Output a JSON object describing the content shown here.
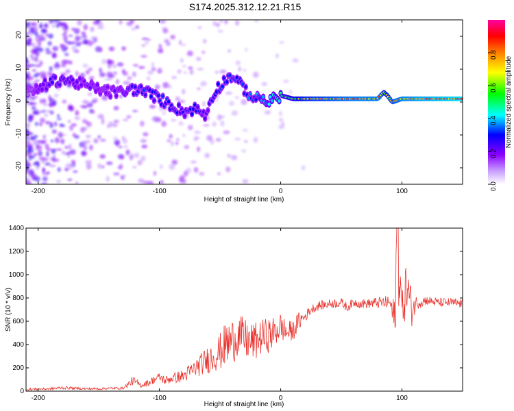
{
  "title": "S174.2025.312.12.21.R15",
  "chart_data": [
    {
      "type": "heatmap",
      "title": "S174.2025.312.12.21.R15",
      "xlabel": "Height of straight line (km)",
      "ylabel": "Frequency (Hz)",
      "xlim": [
        -210,
        150
      ],
      "ylim": [
        -25,
        25
      ],
      "x_ticks": [
        -200,
        -100,
        0,
        100
      ],
      "y_ticks": [
        -20,
        -10,
        0,
        10,
        20
      ],
      "colorbar": {
        "label": "Normalized spectral amplitude",
        "range": [
          0.0,
          1.0
        ],
        "ticks": [
          0.0,
          0.2,
          0.4,
          0.6,
          0.8
        ],
        "colors": [
          "#ffffff",
          "#8a00ff",
          "#0000ff",
          "#00ffff",
          "#00ff00",
          "#ffff00",
          "#ff8000",
          "#ff0000",
          "#ff00a0"
        ]
      },
      "ridge": {
        "name": "dominant frequency",
        "x": [
          -205,
          -190,
          -180,
          -170,
          -160,
          -150,
          -140,
          -130,
          -120,
          -110,
          -100,
          -90,
          -80,
          -70,
          -62,
          -55,
          -50,
          -45,
          -40,
          -35,
          -30,
          -25,
          -20,
          -15,
          -10,
          0,
          10,
          20,
          40,
          60,
          80,
          85,
          88,
          92,
          100,
          120,
          150
        ],
        "y": [
          3,
          6,
          7,
          6,
          5,
          4,
          3,
          3,
          4,
          3,
          1,
          -1,
          -3,
          -2,
          -4,
          3,
          5,
          7,
          8,
          6,
          4,
          2,
          1,
          1,
          0,
          2,
          1,
          1,
          1,
          1,
          1,
          3,
          2,
          0,
          1,
          1,
          1
        ],
        "amplitude": [
          0.15,
          0.25,
          0.25,
          0.22,
          0.2,
          0.18,
          0.2,
          0.2,
          0.3,
          0.3,
          0.3,
          0.3,
          0.25,
          0.3,
          0.2,
          0.3,
          0.3,
          0.3,
          0.3,
          0.3,
          0.3,
          0.35,
          0.35,
          0.4,
          0.45,
          0.5,
          0.6,
          0.7,
          0.75,
          0.8,
          0.8,
          0.7,
          0.7,
          0.75,
          0.8,
          0.85,
          0.9
        ]
      }
    },
    {
      "type": "line",
      "xlabel": "Height of straight line (km)",
      "ylabel": "SNR (10 * v/v)",
      "xlim": [
        -210,
        150
      ],
      "ylim": [
        0,
        1400
      ],
      "x_ticks": [
        -200,
        -100,
        0,
        100
      ],
      "y_ticks": [
        0,
        200,
        400,
        600,
        800,
        1000,
        1200,
        1400
      ],
      "series": [
        {
          "color": "#e8302a",
          "x": [
            -210,
            -190,
            -180,
            -170,
            -160,
            -150,
            -140,
            -130,
            -122,
            -115,
            -110,
            -100,
            -95,
            -90,
            -80,
            -70,
            -60,
            -50,
            -45,
            -40,
            -35,
            -30,
            -25,
            -20,
            -15,
            -10,
            -5,
            0,
            5,
            10,
            15,
            20,
            25,
            30,
            40,
            50,
            55,
            60,
            70,
            80,
            90,
            94,
            96,
            100,
            104,
            108,
            112,
            120,
            130,
            140,
            150
          ],
          "y": [
            15,
            20,
            30,
            25,
            20,
            20,
            25,
            25,
            90,
            50,
            70,
            120,
            90,
            110,
            130,
            200,
            270,
            340,
            400,
            430,
            480,
            450,
            420,
            430,
            470,
            480,
            500,
            560,
            500,
            520,
            600,
            640,
            700,
            730,
            750,
            760,
            720,
            760,
            750,
            760,
            760,
            600,
            1400,
            700,
            900,
            700,
            760,
            780,
            760,
            760,
            750
          ],
          "spread": [
            10,
            10,
            15,
            10,
            10,
            10,
            10,
            10,
            40,
            20,
            30,
            40,
            40,
            40,
            60,
            80,
            120,
            160,
            200,
            200,
            180,
            180,
            170,
            160,
            150,
            150,
            140,
            120,
            100,
            90,
            80,
            50,
            40,
            40,
            40,
            40,
            40,
            40,
            40,
            50,
            60,
            200,
            600,
            120,
            300,
            150,
            60,
            40,
            40,
            40,
            40
          ]
        }
      ]
    }
  ]
}
